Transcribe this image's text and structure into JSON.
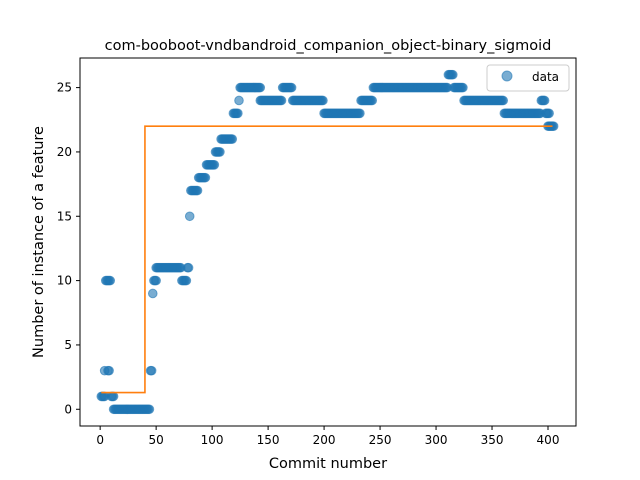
{
  "chart_data": {
    "type": "scatter",
    "title": "com-booboot-vndbandroid_companion_object-binary_sigmoid",
    "xlabel": "Commit number",
    "ylabel": "Number of instance of a feature",
    "xlim": [
      -18,
      425
    ],
    "ylim": [
      -1.3,
      27.3
    ],
    "xticks": [
      0,
      50,
      100,
      150,
      200,
      250,
      300,
      350,
      400
    ],
    "yticks": [
      0,
      5,
      10,
      15,
      20,
      25
    ],
    "legend": {
      "position": "top-right",
      "entries": [
        {
          "label": "data"
        }
      ]
    },
    "colors": {
      "points": "#1f77b4",
      "fit": "#ff7f0e"
    },
    "segments": [
      {
        "x0": 1,
        "x1": 4,
        "y": 1
      },
      {
        "x0": 4,
        "x1": 4,
        "y": 3
      },
      {
        "x0": 5,
        "x1": 9,
        "y": 10
      },
      {
        "x0": 7,
        "x1": 8,
        "y": 3
      },
      {
        "x0": 10,
        "x1": 12,
        "y": 1
      },
      {
        "x0": 12,
        "x1": 44,
        "y": 0
      },
      {
        "x0": 45,
        "x1": 46,
        "y": 3
      },
      {
        "x0": 47,
        "x1": 47,
        "y": 9
      },
      {
        "x0": 48,
        "x1": 50,
        "y": 10
      },
      {
        "x0": 50,
        "x1": 72,
        "y": 11
      },
      {
        "x0": 73,
        "x1": 77,
        "y": 10
      },
      {
        "x0": 78,
        "x1": 79,
        "y": 11
      },
      {
        "x0": 80,
        "x1": 80,
        "y": 15
      },
      {
        "x0": 81,
        "x1": 87,
        "y": 17
      },
      {
        "x0": 88,
        "x1": 94,
        "y": 18
      },
      {
        "x0": 95,
        "x1": 102,
        "y": 19
      },
      {
        "x0": 103,
        "x1": 107,
        "y": 20
      },
      {
        "x0": 108,
        "x1": 118,
        "y": 21
      },
      {
        "x0": 119,
        "x1": 123,
        "y": 23
      },
      {
        "x0": 124,
        "x1": 124,
        "y": 24
      },
      {
        "x0": 125,
        "x1": 143,
        "y": 25
      },
      {
        "x0": 143,
        "x1": 162,
        "y": 24
      },
      {
        "x0": 163,
        "x1": 171,
        "y": 25
      },
      {
        "x0": 172,
        "x1": 199,
        "y": 24
      },
      {
        "x0": 200,
        "x1": 232,
        "y": 23
      },
      {
        "x0": 233,
        "x1": 243,
        "y": 24
      },
      {
        "x0": 244,
        "x1": 310,
        "y": 25
      },
      {
        "x0": 311,
        "x1": 315,
        "y": 26
      },
      {
        "x0": 316,
        "x1": 324,
        "y": 25
      },
      {
        "x0": 325,
        "x1": 360,
        "y": 24
      },
      {
        "x0": 361,
        "x1": 393,
        "y": 23
      },
      {
        "x0": 394,
        "x1": 397,
        "y": 24
      },
      {
        "x0": 398,
        "x1": 401,
        "y": 23
      },
      {
        "x0": 400,
        "x1": 405,
        "y": 22
      }
    ],
    "fit_line": {
      "x": [
        1,
        40,
        40,
        404
      ],
      "y": [
        1.3,
        1.3,
        22,
        22
      ]
    }
  }
}
